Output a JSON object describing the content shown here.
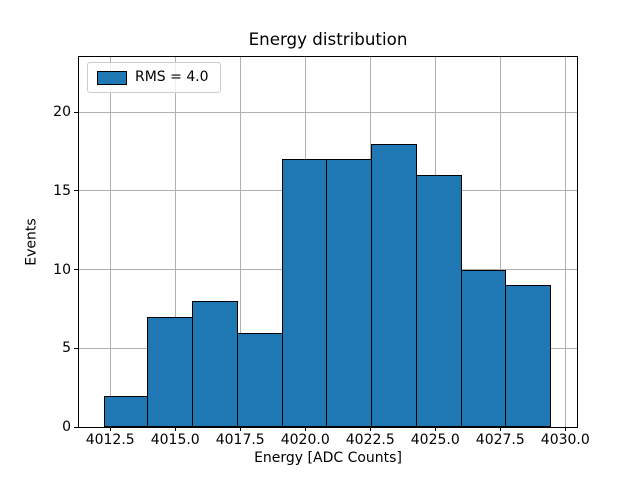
{
  "chart_data": {
    "type": "bar",
    "subtype": "histogram",
    "title": "Energy distribution",
    "xlabel": "Energy [ADC Counts]",
    "ylabel": "Events",
    "legend": {
      "label": "RMS = 4.0",
      "position": "upper left"
    },
    "bin_edges": [
      4012.25,
      4013.97,
      4015.69,
      4017.41,
      4019.13,
      4020.85,
      4022.57,
      4024.29,
      4026.01,
      4027.73,
      4029.45
    ],
    "counts": [
      2,
      7,
      8,
      6,
      17,
      17,
      18,
      16,
      10,
      9
    ],
    "xlim": [
      4011.3,
      4030.45
    ],
    "ylim": [
      0,
      23.5
    ],
    "xticks": [
      4012.5,
      4015.0,
      4017.5,
      4020.0,
      4022.5,
      4025.0,
      4027.5,
      4030.0
    ],
    "xtick_labels": [
      "4012.5",
      "4015.0",
      "4017.5",
      "4020.0",
      "4022.5",
      "4025.0",
      "4027.5",
      "4030.0"
    ],
    "yticks": [
      0,
      5,
      10,
      15,
      20
    ],
    "ytick_labels": [
      "0",
      "5",
      "10",
      "15",
      "20"
    ],
    "grid": true,
    "colors": {
      "bar_fill": "#1f77b4",
      "bar_edge": "#000000",
      "grid": "#b0b0b0",
      "spine": "#000000",
      "legend_border": "#cccccc",
      "text": "#000000",
      "background": "#ffffff"
    }
  }
}
